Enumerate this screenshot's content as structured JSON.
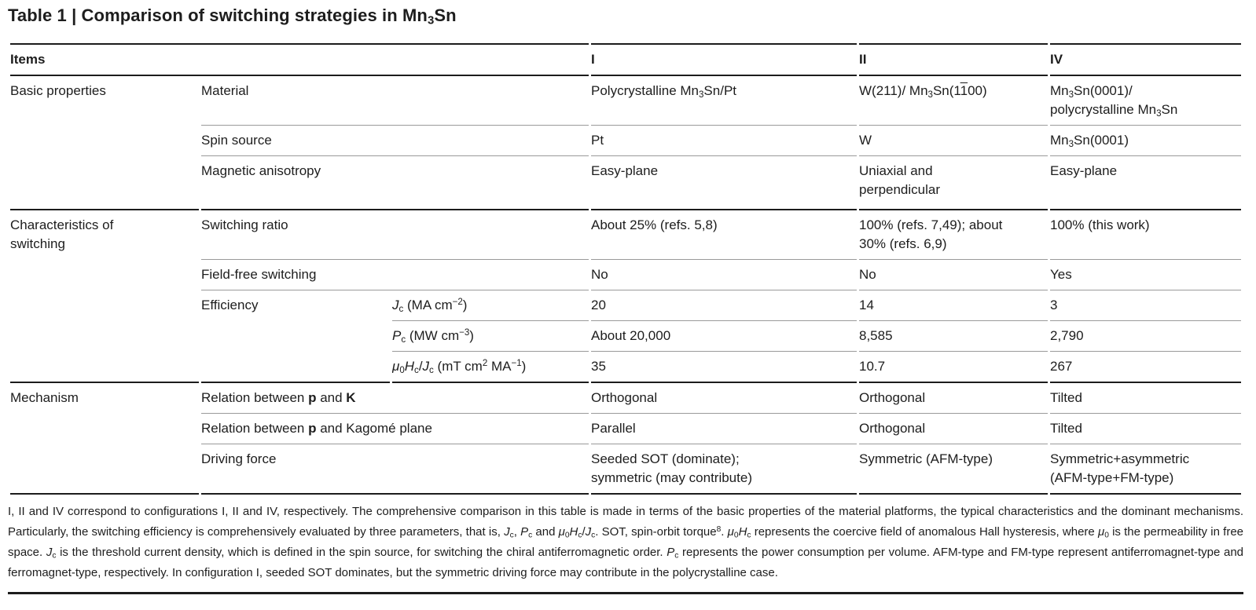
{
  "colors": {
    "text": "#1d1d1d",
    "rule-dark": "#1c1c1c",
    "rule-light": "#9a9a9a",
    "bg": "#ffffff"
  },
  "title": "Table 1 | Comparison of switching strategies in Mn_{3}Sn",
  "header": {
    "items": "Items",
    "col_I": "I",
    "col_II": "II",
    "col_IV": "IV"
  },
  "sections": [
    {
      "group": "Basic properties",
      "rows": [
        {
          "label": "Material",
          "values": [
            "Polycrystalline Mn_{3}Sn/Pt",
            "W(211)/ Mn_{3}Sn(1%{1}00)",
            "Mn_{3}Sn(0001)/\npolycrystalline Mn_{3}Sn"
          ]
        },
        {
          "label": "Spin source",
          "values": [
            "Pt",
            "W",
            "Mn_{3}Sn(0001)"
          ]
        },
        {
          "label": "Magnetic anisotropy",
          "values": [
            "Easy-plane",
            "Uniaxial and\nperpendicular",
            "Easy-plane"
          ]
        }
      ]
    },
    {
      "group": "Characteristics of\nswitching",
      "rows": [
        {
          "label": "Switching ratio",
          "values": [
            "About 25% (refs. 5,8)",
            "100% (refs. 7,49); about\n30% (refs. 6,9)",
            "100% (this work)"
          ]
        },
        {
          "label": "Field-free switching",
          "values": [
            "No",
            "No",
            "Yes"
          ]
        },
        {
          "label": "Efficiency",
          "unit": "@{J}_{c} (MA cm^{−2})",
          "values": [
            "20",
            "14",
            "3"
          ]
        },
        {
          "label": "",
          "unit": "@{P}_{c} (MW cm^{−3})",
          "values": [
            "About 20,000",
            "8,585",
            "2,790"
          ]
        },
        {
          "label": "",
          "unit": "@{μ}_{0}@{H}_{c}/@{J}_{c} (mT cm^{2} MA^{−1})",
          "values": [
            "35",
            "10.7",
            "267"
          ]
        }
      ]
    },
    {
      "group": "Mechanism",
      "rows": [
        {
          "label": "Relation between *{p} and *{K}",
          "values": [
            "Orthogonal",
            "Orthogonal",
            "Tilted"
          ]
        },
        {
          "label": "Relation between *{p} and Kagomé plane",
          "values": [
            "Parallel",
            "Orthogonal",
            "Tilted"
          ]
        },
        {
          "label": "Driving force",
          "values": [
            "Seeded SOT (dominate);\nsymmetric (may contribute)",
            "Symmetric (AFM-type)",
            "Symmetric+asymmetric\n(AFM-type+FM-type)"
          ]
        }
      ]
    }
  ],
  "footnote": "I, II and IV correspond to configurations I, II and IV, respectively. The comprehensive comparison in this table is made in terms of the basic properties of the material platforms, the typical characteristics and the dominant mechanisms. Particularly, the switching efficiency is comprehensively evaluated by three parameters, that is, @{J}_{c}, @{P}_{c} and @{μ}_{0}@{H}_{c}/@{J}_{c}. SOT, spin-orbit torque^{8}. @{μ}_{0}@{H}_{c} represents the coercive field of anomalous Hall hysteresis, where @{μ}_{0} is the permeability in free space. @{J}_{c} is the threshold current density, which is defined in the spin source, for switching the chiral antiferromagnetic order. @{P}_{c} represents the power consumption per volume. AFM-type and FM-type represent antiferromagnet-type and ferromagnet-type, respectively. In configuration I, seeded SOT dominates, but the symmetric driving force may contribute in the polycrystalline case."
}
